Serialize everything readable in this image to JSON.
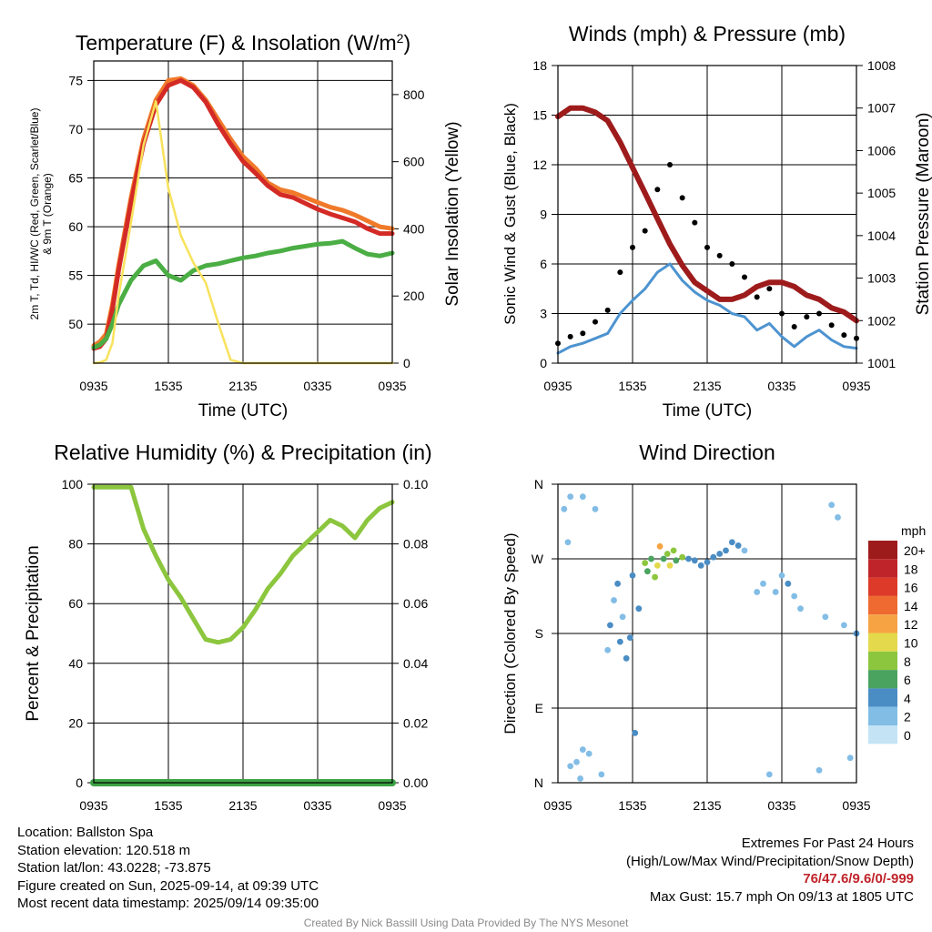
{
  "x_ticks": [
    "0935",
    "1535",
    "2135",
    "0335",
    "0935"
  ],
  "chart_data": [
    {
      "type": "line",
      "title": "Temperature (F) & Insolation (W/m²)",
      "title_parts": [
        "Temperature (F) & Insolation (W/m",
        "2",
        ")"
      ],
      "xlabel": "Time (UTC)",
      "ylabel_lines": [
        "2m T, Td, HI/WC (Red, Green, Scarlet/Blue)",
        "& 9m T (Orange)"
      ],
      "ylabel2": "Solar Insolation (Yellow)",
      "ylim": [
        46,
        77
      ],
      "y2lim": [
        0,
        900
      ],
      "yticks": [
        50,
        55,
        60,
        65,
        70,
        75
      ],
      "y2ticks": [
        0,
        200,
        400,
        600,
        800
      ],
      "x": [
        0,
        0.5,
        1,
        1.5,
        2,
        3,
        4,
        5,
        6,
        7,
        8,
        9,
        10,
        11,
        12,
        13,
        14,
        15,
        16,
        17,
        18,
        19,
        20,
        21,
        22,
        23,
        24
      ],
      "series": [
        {
          "key": "9m T",
          "color": "#f07a2a",
          "values": [
            47.8,
            48.2,
            49.0,
            52.0,
            56.0,
            63.0,
            69.0,
            73.0,
            75.0,
            75.2,
            74.5,
            73.0,
            71.0,
            69.0,
            67.2,
            66.0,
            64.5,
            63.8,
            63.5,
            63.0,
            62.5,
            62.0,
            61.7,
            61.2,
            60.6,
            60.0,
            59.8
          ]
        },
        {
          "key": "2m T",
          "color": "#d42a26",
          "values": [
            47.5,
            47.7,
            48.5,
            51.5,
            55.5,
            62.5,
            68.5,
            72.5,
            74.5,
            75.0,
            74.3,
            72.8,
            70.5,
            68.5,
            66.7,
            65.5,
            64.2,
            63.3,
            63.0,
            62.4,
            61.8,
            61.3,
            60.9,
            60.5,
            59.8,
            59.3,
            59.3
          ]
        },
        {
          "key": "Td",
          "color": "#4aae44",
          "values": [
            47.6,
            47.9,
            48.5,
            50.0,
            52.0,
            54.5,
            56.0,
            56.5,
            55.0,
            54.5,
            55.5,
            56.0,
            56.2,
            56.5,
            56.8,
            57.0,
            57.3,
            57.5,
            57.8,
            58.0,
            58.2,
            58.3,
            58.5,
            57.8,
            57.2,
            57.0,
            57.3
          ]
        },
        {
          "key": "Insolation",
          "color": "#f8e25c",
          "axis": "y2",
          "values": [
            0,
            2,
            10,
            60,
            200,
            420,
            650,
            780,
            520,
            380,
            300,
            240,
            120,
            10,
            0,
            0,
            0,
            0,
            0,
            0,
            0,
            0,
            0,
            0,
            0,
            0,
            0
          ]
        }
      ]
    },
    {
      "type": "line",
      "title": "Winds (mph) & Pressure (mb)",
      "xlabel": "Time (UTC)",
      "ylabel": "Sonic Wind & Gust (Blue, Black)",
      "ylabel2": "Station Pressure (Maroon)",
      "ylim": [
        0,
        18
      ],
      "y2lim": [
        1001,
        1008
      ],
      "yticks": [
        0,
        3,
        6,
        9,
        12,
        15,
        18
      ],
      "y2ticks": [
        1001,
        1002,
        1003,
        1004,
        1005,
        1006,
        1007,
        1008
      ],
      "x": [
        0,
        1,
        2,
        3,
        4,
        5,
        6,
        7,
        8,
        9,
        10,
        11,
        12,
        13,
        14,
        15,
        16,
        17,
        18,
        19,
        20,
        21,
        22,
        23,
        24
      ],
      "series": [
        {
          "key": "Wind",
          "color": "#4d93d0",
          "values": [
            0.6,
            1.0,
            1.2,
            1.5,
            1.8,
            3.0,
            3.8,
            4.5,
            5.5,
            6.0,
            5.0,
            4.3,
            3.8,
            3.5,
            3.0,
            2.8,
            2.0,
            2.4,
            1.6,
            1.0,
            1.6,
            2.0,
            1.4,
            1.0,
            0.9
          ]
        },
        {
          "key": "Gust",
          "color": "#000000",
          "dots": true,
          "values": [
            1.2,
            1.6,
            1.8,
            2.5,
            3.2,
            5.5,
            7.0,
            8.0,
            10.5,
            12.0,
            10.0,
            8.5,
            7.0,
            6.5,
            6.0,
            5.2,
            4.0,
            4.5,
            3.0,
            2.2,
            2.8,
            3.0,
            2.3,
            1.7,
            1.5
          ]
        },
        {
          "key": "Pressure",
          "color": "#9e1b1c",
          "axis": "y2",
          "values": [
            1006.8,
            1007.0,
            1007.0,
            1006.9,
            1006.7,
            1006.2,
            1005.6,
            1005.0,
            1004.4,
            1003.8,
            1003.3,
            1002.9,
            1002.7,
            1002.5,
            1002.5,
            1002.6,
            1002.8,
            1002.9,
            1002.9,
            1002.8,
            1002.6,
            1002.5,
            1002.3,
            1002.2,
            1002.0
          ]
        }
      ]
    },
    {
      "type": "line",
      "title": "Relative Humidity (%) & Precipitation (in)",
      "ylabel": "Percent & Precipitation",
      "ylim": [
        0,
        100
      ],
      "y2lim": [
        0,
        0.1
      ],
      "yticks": [
        0,
        20,
        40,
        60,
        80,
        100
      ],
      "y2ticks": [
        "0.00",
        "0.02",
        "0.04",
        "0.06",
        "0.08",
        "0.10"
      ],
      "x": [
        0,
        1,
        2,
        3,
        4,
        5,
        6,
        7,
        8,
        9,
        10,
        11,
        12,
        13,
        14,
        15,
        16,
        17,
        18,
        19,
        20,
        21,
        22,
        23,
        24
      ],
      "series": [
        {
          "key": "RH",
          "color": "#8cc63e",
          "values": [
            99,
            99,
            99,
            99,
            85,
            76,
            68,
            62,
            55,
            48,
            47,
            48,
            52,
            58,
            65,
            70,
            76,
            80,
            84,
            88,
            86,
            82,
            88,
            92,
            94
          ]
        },
        {
          "key": "Precipitation",
          "color": "#3ca244",
          "axis": "y2",
          "values": [
            0,
            0,
            0,
            0,
            0,
            0,
            0,
            0,
            0,
            0,
            0,
            0,
            0,
            0,
            0,
            0,
            0,
            0,
            0,
            0,
            0,
            0,
            0,
            0,
            0
          ]
        }
      ]
    },
    {
      "type": "scatter",
      "title": "Wind Direction",
      "ylabel": "Direction (Colored By Speed)",
      "yticks": [
        "N",
        "E",
        "S",
        "W",
        "N"
      ],
      "ylim": [
        0,
        360
      ],
      "colorbar_unit": "mph",
      "colorbar_labels": [
        "20+",
        "18",
        "16",
        "14",
        "12",
        "10",
        "8",
        "6",
        "4",
        "2",
        "0"
      ],
      "colorbar_colors": [
        "#9e1b1c",
        "#c0242b",
        "#dd3a2a",
        "#ef6a30",
        "#f6a344",
        "#e4d94c",
        "#8cc63e",
        "#4aa35f",
        "#4a8dc4",
        "#82bde6",
        "#c4e4f6"
      ],
      "points": [
        [
          0.5,
          330,
          1
        ],
        [
          1.0,
          20,
          1
        ],
        [
          1.5,
          25,
          1
        ],
        [
          2.0,
          345,
          1
        ],
        [
          2.5,
          35,
          1
        ],
        [
          3.0,
          330,
          1
        ],
        [
          3.5,
          10,
          1
        ],
        [
          1.0,
          345,
          2
        ],
        [
          2.0,
          40,
          1
        ],
        [
          0.8,
          290,
          2
        ],
        [
          1.8,
          5,
          1
        ],
        [
          4.0,
          160,
          2
        ],
        [
          4.2,
          190,
          3
        ],
        [
          4.5,
          220,
          2
        ],
        [
          4.8,
          240,
          3
        ],
        [
          5.0,
          170,
          3
        ],
        [
          5.2,
          200,
          2
        ],
        [
          5.5,
          150,
          3
        ],
        [
          5.8,
          175,
          4
        ],
        [
          6.0,
          250,
          3
        ],
        [
          6.2,
          60,
          3
        ],
        [
          6.5,
          210,
          3
        ],
        [
          7.0,
          265,
          7
        ],
        [
          7.2,
          255,
          6
        ],
        [
          7.5,
          270,
          5
        ],
        [
          7.8,
          248,
          7
        ],
        [
          8.0,
          262,
          10
        ],
        [
          8.2,
          285,
          12
        ],
        [
          8.5,
          270,
          6
        ],
        [
          8.8,
          276,
          8
        ],
        [
          9.0,
          262,
          10
        ],
        [
          9.3,
          280,
          7
        ],
        [
          9.5,
          268,
          6
        ],
        [
          10.0,
          272,
          7
        ],
        [
          10.5,
          270,
          4
        ],
        [
          11.0,
          268,
          4
        ],
        [
          11.5,
          262,
          4
        ],
        [
          12.0,
          266,
          4
        ],
        [
          12.5,
          272,
          3
        ],
        [
          13.0,
          276,
          3
        ],
        [
          13.5,
          280,
          4
        ],
        [
          14.0,
          290,
          4
        ],
        [
          14.5,
          286,
          3
        ],
        [
          15.0,
          280,
          2
        ],
        [
          16.0,
          230,
          2
        ],
        [
          16.5,
          240,
          2
        ],
        [
          17.0,
          10,
          2
        ],
        [
          17.5,
          230,
          2
        ],
        [
          18.0,
          250,
          2
        ],
        [
          18.5,
          240,
          3
        ],
        [
          19.0,
          225,
          2
        ],
        [
          19.5,
          210,
          1
        ],
        [
          21.0,
          15,
          1
        ],
        [
          21.5,
          200,
          2
        ],
        [
          22.0,
          335,
          1
        ],
        [
          22.5,
          320,
          1
        ],
        [
          23.0,
          190,
          2
        ],
        [
          23.5,
          30,
          1
        ],
        [
          24.0,
          180,
          3
        ]
      ]
    }
  ],
  "location": {
    "location_line": "Location: Ballston Spa",
    "elevation_line": "Station elevation: 120.518 m",
    "latlon_line": "Station lat/lon: 43.0228; -73.875",
    "created_line": "Figure created on Sun, 2025-09-14, at 09:39 UTC",
    "recent_line": "Most recent data timestamp: 2025/09/14 09:35:00"
  },
  "extremes": {
    "title": "Extremes For Past 24 Hours",
    "subtitle": "(High/Low/Max Wind/Precipitation/Snow Depth)",
    "values": "76/47.6/9.6/0/-999",
    "gust": "Max Gust: 15.7 mph On 09/13 at 1805 UTC"
  },
  "credit": "Created By Nick Bassill Using Data Provided By The NYS Mesonet"
}
